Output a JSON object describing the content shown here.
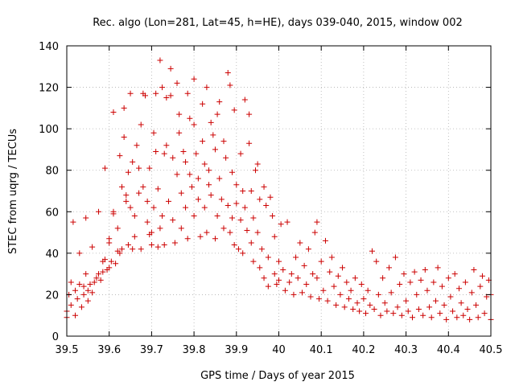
{
  "chart_data": {
    "type": "scatter",
    "title": "Rec. algo (Lon=281, Lat=45, h=HE), days 039-040, 2015, window 002",
    "xlabel": "GPS time / Days of year 2015",
    "ylabel": "STEC from uqrg / TECUs",
    "xlim": [
      39.5,
      40.5
    ],
    "ylim": [
      0,
      140
    ],
    "xticks": [
      "39.5",
      "39.6",
      "39.7",
      "39.8",
      "39.9",
      "40",
      "40.1",
      "40.2",
      "40.3",
      "40.4",
      "40.5"
    ],
    "yticks": [
      "0",
      "20",
      "40",
      "60",
      "80",
      "100",
      "120",
      "140"
    ],
    "grid": true,
    "marker": "+",
    "color": "#cc0000",
    "series": [
      {
        "name": "",
        "points": [
          [
            39.5,
            9
          ],
          [
            39.5,
            12
          ],
          [
            39.505,
            20
          ],
          [
            39.51,
            15
          ],
          [
            39.51,
            26
          ],
          [
            39.515,
            55
          ],
          [
            39.52,
            10
          ],
          [
            39.52,
            22
          ],
          [
            39.525,
            18
          ],
          [
            39.53,
            25
          ],
          [
            39.53,
            40
          ],
          [
            39.535,
            14
          ],
          [
            39.54,
            24
          ],
          [
            39.54,
            20
          ],
          [
            39.545,
            57
          ],
          [
            39.545,
            30
          ],
          [
            39.55,
            17
          ],
          [
            39.55,
            22
          ],
          [
            39.555,
            25
          ],
          [
            39.56,
            21
          ],
          [
            39.56,
            43
          ],
          [
            39.565,
            26
          ],
          [
            39.57,
            28
          ],
          [
            39.575,
            60
          ],
          [
            39.575,
            30
          ],
          [
            39.58,
            27
          ],
          [
            39.585,
            31
          ],
          [
            39.585,
            36
          ],
          [
            39.59,
            81
          ],
          [
            39.59,
            37
          ],
          [
            39.595,
            32
          ],
          [
            39.6,
            33
          ],
          [
            39.6,
            45
          ],
          [
            39.6,
            47
          ],
          [
            39.605,
            36
          ],
          [
            39.61,
            59
          ],
          [
            39.61,
            60
          ],
          [
            39.61,
            108
          ],
          [
            39.615,
            35
          ],
          [
            39.62,
            41
          ],
          [
            39.62,
            52
          ],
          [
            39.625,
            87
          ],
          [
            39.625,
            40
          ],
          [
            39.63,
            42
          ],
          [
            39.63,
            72
          ],
          [
            39.635,
            110
          ],
          [
            39.635,
            96
          ],
          [
            39.64,
            65
          ],
          [
            39.64,
            68
          ],
          [
            39.645,
            44
          ],
          [
            39.645,
            79
          ],
          [
            39.65,
            117
          ],
          [
            39.65,
            62
          ],
          [
            39.655,
            84
          ],
          [
            39.655,
            42
          ],
          [
            39.66,
            58
          ],
          [
            39.66,
            48
          ],
          [
            39.665,
            92
          ],
          [
            39.67,
            69
          ],
          [
            39.67,
            81
          ],
          [
            39.675,
            42
          ],
          [
            39.675,
            102
          ],
          [
            39.68,
            117
          ],
          [
            39.68,
            72
          ],
          [
            39.685,
            116
          ],
          [
            39.69,
            55
          ],
          [
            39.69,
            65
          ],
          [
            39.695,
            49
          ],
          [
            39.695,
            81
          ],
          [
            39.7,
            44
          ],
          [
            39.7,
            50
          ],
          [
            39.705,
            98
          ],
          [
            39.705,
            62
          ],
          [
            39.71,
            89
          ],
          [
            39.71,
            117
          ],
          [
            39.715,
            43
          ],
          [
            39.715,
            71
          ],
          [
            39.72,
            133
          ],
          [
            39.72,
            52
          ],
          [
            39.725,
            58
          ],
          [
            39.725,
            120
          ],
          [
            39.73,
            88
          ],
          [
            39.73,
            44
          ],
          [
            39.735,
            115
          ],
          [
            39.735,
            92
          ],
          [
            39.74,
            65
          ],
          [
            39.745,
            116
          ],
          [
            39.745,
            129
          ],
          [
            39.75,
            86
          ],
          [
            39.75,
            56
          ],
          [
            39.755,
            45
          ],
          [
            39.76,
            122
          ],
          [
            39.76,
            78
          ],
          [
            39.765,
            98
          ],
          [
            39.765,
            107
          ],
          [
            39.77,
            69
          ],
          [
            39.77,
            52
          ],
          [
            39.775,
            89
          ],
          [
            39.78,
            84
          ],
          [
            39.78,
            62
          ],
          [
            39.785,
            47
          ],
          [
            39.785,
            117
          ],
          [
            39.79,
            105
          ],
          [
            39.79,
            78
          ],
          [
            39.795,
            72
          ],
          [
            39.8,
            124
          ],
          [
            39.8,
            102
          ],
          [
            39.8,
            58
          ],
          [
            39.805,
            88
          ],
          [
            39.81,
            76
          ],
          [
            39.81,
            66
          ],
          [
            39.815,
            48
          ],
          [
            39.82,
            112
          ],
          [
            39.82,
            94
          ],
          [
            39.825,
            83
          ],
          [
            39.825,
            62
          ],
          [
            39.83,
            120
          ],
          [
            39.83,
            50
          ],
          [
            39.835,
            73
          ],
          [
            39.835,
            80
          ],
          [
            39.84,
            103
          ],
          [
            39.84,
            68
          ],
          [
            39.845,
            97
          ],
          [
            39.85,
            90
          ],
          [
            39.85,
            47
          ],
          [
            39.855,
            107
          ],
          [
            39.855,
            58
          ],
          [
            39.86,
            113
          ],
          [
            39.86,
            76
          ],
          [
            39.865,
            66
          ],
          [
            39.87,
            94
          ],
          [
            39.87,
            52
          ],
          [
            39.875,
            86
          ],
          [
            39.88,
            127
          ],
          [
            39.88,
            63
          ],
          [
            39.885,
            121
          ],
          [
            39.885,
            50
          ],
          [
            39.89,
            79
          ],
          [
            39.89,
            57
          ],
          [
            39.895,
            109
          ],
          [
            39.895,
            44
          ],
          [
            39.9,
            73
          ],
          [
            39.9,
            64
          ],
          [
            39.905,
            42
          ],
          [
            39.91,
            88
          ],
          [
            39.91,
            56
          ],
          [
            39.915,
            70
          ],
          [
            39.915,
            40
          ],
          [
            39.92,
            114
          ],
          [
            39.92,
            62
          ],
          [
            39.925,
            51
          ],
          [
            39.93,
            107
          ],
          [
            39.93,
            93
          ],
          [
            39.935,
            45
          ],
          [
            39.935,
            70
          ],
          [
            39.94,
            57
          ],
          [
            39.94,
            36
          ],
          [
            39.945,
            80
          ],
          [
            39.95,
            83
          ],
          [
            39.95,
            50
          ],
          [
            39.955,
            66
          ],
          [
            39.955,
            33
          ],
          [
            39.96,
            42
          ],
          [
            39.965,
            72
          ],
          [
            39.965,
            28
          ],
          [
            39.97,
            63
          ],
          [
            39.975,
            38
          ],
          [
            39.975,
            24
          ],
          [
            39.98,
            67
          ],
          [
            39.985,
            58
          ],
          [
            39.99,
            30
          ],
          [
            39.99,
            48
          ],
          [
            39.995,
            25
          ],
          [
            40.0,
            36
          ],
          [
            40.0,
            27
          ],
          [
            40.005,
            54
          ],
          [
            40.01,
            32
          ],
          [
            40.015,
            22
          ],
          [
            40.02,
            55
          ],
          [
            40.025,
            26
          ],
          [
            40.03,
            30
          ],
          [
            40.035,
            20
          ],
          [
            40.04,
            38
          ],
          [
            40.045,
            28
          ],
          [
            40.05,
            45
          ],
          [
            40.055,
            21
          ],
          [
            40.06,
            34
          ],
          [
            40.065,
            25
          ],
          [
            40.07,
            42
          ],
          [
            40.075,
            19
          ],
          [
            40.08,
            30
          ],
          [
            40.085,
            50
          ],
          [
            40.09,
            28
          ],
          [
            40.09,
            55
          ],
          [
            40.095,
            18
          ],
          [
            40.1,
            36
          ],
          [
            40.105,
            22
          ],
          [
            40.11,
            46
          ],
          [
            40.115,
            17
          ],
          [
            40.12,
            31
          ],
          [
            40.125,
            38
          ],
          [
            40.13,
            24
          ],
          [
            40.135,
            15
          ],
          [
            40.14,
            29
          ],
          [
            40.145,
            20
          ],
          [
            40.15,
            33
          ],
          [
            40.155,
            14
          ],
          [
            40.16,
            26
          ],
          [
            40.165,
            18
          ],
          [
            40.17,
            22
          ],
          [
            40.175,
            13
          ],
          [
            40.18,
            28
          ],
          [
            40.185,
            16
          ],
          [
            40.19,
            12
          ],
          [
            40.195,
            25
          ],
          [
            40.2,
            18
          ],
          [
            40.205,
            11
          ],
          [
            40.21,
            22
          ],
          [
            40.215,
            15
          ],
          [
            40.22,
            41
          ],
          [
            40.225,
            13
          ],
          [
            40.23,
            36
          ],
          [
            40.235,
            20
          ],
          [
            40.24,
            10
          ],
          [
            40.245,
            28
          ],
          [
            40.25,
            16
          ],
          [
            40.255,
            12
          ],
          [
            40.26,
            33
          ],
          [
            40.265,
            21
          ],
          [
            40.27,
            11
          ],
          [
            40.275,
            38
          ],
          [
            40.28,
            14
          ],
          [
            40.285,
            25
          ],
          [
            40.29,
            10
          ],
          [
            40.295,
            30
          ],
          [
            40.3,
            17
          ],
          [
            40.305,
            12
          ],
          [
            40.31,
            26
          ],
          [
            40.315,
            9
          ],
          [
            40.32,
            31
          ],
          [
            40.325,
            20
          ],
          [
            40.33,
            13
          ],
          [
            40.335,
            27
          ],
          [
            40.34,
            10
          ],
          [
            40.345,
            32
          ],
          [
            40.35,
            22
          ],
          [
            40.355,
            14
          ],
          [
            40.36,
            9
          ],
          [
            40.365,
            26
          ],
          [
            40.37,
            17
          ],
          [
            40.375,
            33
          ],
          [
            40.38,
            11
          ],
          [
            40.385,
            24
          ],
          [
            40.39,
            15
          ],
          [
            40.395,
            8
          ],
          [
            40.4,
            28
          ],
          [
            40.405,
            19
          ],
          [
            40.41,
            12
          ],
          [
            40.415,
            30
          ],
          [
            40.42,
            9
          ],
          [
            40.425,
            23
          ],
          [
            40.43,
            16
          ],
          [
            40.435,
            10
          ],
          [
            40.44,
            26
          ],
          [
            40.445,
            13
          ],
          [
            40.45,
            8
          ],
          [
            40.455,
            21
          ],
          [
            40.46,
            32
          ],
          [
            40.465,
            15
          ],
          [
            40.47,
            9
          ],
          [
            40.475,
            24
          ],
          [
            40.48,
            29
          ],
          [
            40.485,
            11
          ],
          [
            40.49,
            19
          ],
          [
            40.495,
            27
          ],
          [
            40.5,
            20
          ],
          [
            40.5,
            8
          ]
        ]
      }
    ]
  }
}
